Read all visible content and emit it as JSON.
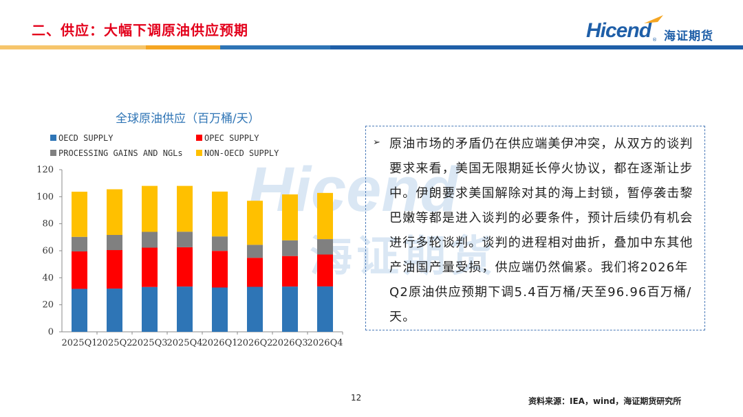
{
  "header": {
    "title": "二、供应：大幅下调原油供应预期",
    "title_color": "#e3001b",
    "stripe_colors": [
      "#f6c56b",
      "#f5a623",
      "#2e74b5",
      "#1f5fa8"
    ]
  },
  "logo": {
    "brand": "Hicend",
    "brand_cn": "海证期货",
    "registered": "®",
    "brand_color": "#1f5fa8",
    "accent_color": "#f5a623"
  },
  "chart_data": {
    "type": "bar",
    "stacked": true,
    "title": "全球原油供应（百万桶/天）",
    "categories": [
      "2025Q1",
      "2025Q2",
      "2025Q3",
      "2025Q4",
      "2026Q1",
      "2026Q2",
      "2026Q3",
      "2026Q4"
    ],
    "series": [
      {
        "name": "OECD SUPPLY",
        "color": "#2e75b6",
        "values": [
          31.8,
          32.0,
          33.2,
          33.5,
          32.8,
          33.3,
          33.5,
          33.6
        ]
      },
      {
        "name": "OPEC SUPPLY",
        "color": "#ff0000",
        "values": [
          27.7,
          28.5,
          29.1,
          29.1,
          27.1,
          21.5,
          22.6,
          23.6
        ]
      },
      {
        "name": "PROCESSING GAINS AND NGLs",
        "color": "#808080",
        "values": [
          10.8,
          11.2,
          11.7,
          11.5,
          10.7,
          9.6,
          11.6,
          11.4
        ]
      },
      {
        "name": "NON-OECD SUPPLY",
        "color": "#ffc000",
        "values": [
          33.4,
          33.8,
          34.0,
          33.9,
          33.2,
          32.6,
          34.0,
          34.2
        ]
      }
    ],
    "ylim": [
      0,
      120
    ],
    "yticks": [
      0,
      20,
      40,
      60,
      80,
      100,
      120
    ],
    "xlabel": "",
    "ylabel": "",
    "grid": false,
    "legend_position": "top"
  },
  "textbox": {
    "bullet": "➢",
    "text": "原油市场的矛盾仍在供应端美伊冲突，从双方的谈判要求来看，美国无限期延长停火协议，都在逐渐让步中。伊朗要求美国解除对其的海上封锁，暂停袭击黎巴嫩等都是进入谈判的必要条件，预计后续仍有机会进行多轮谈判。谈判的进程相对曲折，叠加中东其他产油国产量受损，供应端仍然偏紧。我们将2026年Q2原油供应预期下调5.4百万桶/天至96.96百万桶/天。",
    "border_color": "#4a7ab8"
  },
  "footer": {
    "page_number": "12",
    "source": "资料来源：IEA，wind，海证期货研究所"
  }
}
